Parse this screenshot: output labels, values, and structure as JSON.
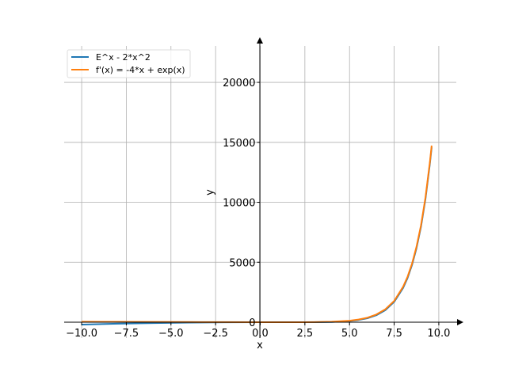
{
  "chart_data": {
    "type": "line",
    "title": "",
    "xlabel": "x",
    "ylabel": "y",
    "xlim": [
      -10.98,
      10.98
    ],
    "ylim": [
      -1320,
      23040
    ],
    "grid": true,
    "legend_position": "top-left",
    "xticks": [
      -10,
      -7.5,
      -5,
      -2.5,
      0,
      2.5,
      5,
      7.5,
      10
    ],
    "xtick_labels": [
      "−10.0",
      "−7.5",
      "−5.0",
      "−2.5",
      "0.0",
      "2.5",
      "5.0",
      "7.5",
      "10.0"
    ],
    "yticks": [
      0,
      5000,
      10000,
      15000,
      20000
    ],
    "ytick_labels": [
      "0",
      "5000",
      "10000",
      "15000",
      "20000"
    ],
    "x": [
      -10,
      -8,
      -6,
      -4,
      -2,
      0,
      1,
      2,
      3,
      4,
      5,
      5.5,
      6,
      6.5,
      7,
      7.5,
      8,
      8.25,
      8.5,
      8.75,
      9,
      9.25,
      9.5,
      9.6
    ],
    "series": [
      {
        "name": "E^x - 2*x^2",
        "color": "#1f77b4",
        "values": [
          -200,
          -128,
          -72,
          -31.98,
          -7.86,
          1,
          0.72,
          -0.61,
          2.09,
          22.6,
          98.4,
          184.2,
          331.4,
          580.6,
          998.6,
          1695.5,
          2853,
          3691.5,
          4770.3,
          6157.6,
          7941.1,
          10233.5,
          13179.2,
          14580.5
        ]
      },
      {
        "name": "f'(x) = -4*x + exp(x)",
        "color": "#ff7f0e",
        "values": [
          40,
          32,
          24,
          16.02,
          8.14,
          1,
          -1.28,
          -0.61,
          8.09,
          38.6,
          128.4,
          222.7,
          379.4,
          639.1,
          1068.6,
          1778,
          2949,
          3794.6,
          4880.8,
          6275.7,
          8067.1,
          10367.6,
          13321.7,
          14726.4
        ]
      }
    ]
  }
}
